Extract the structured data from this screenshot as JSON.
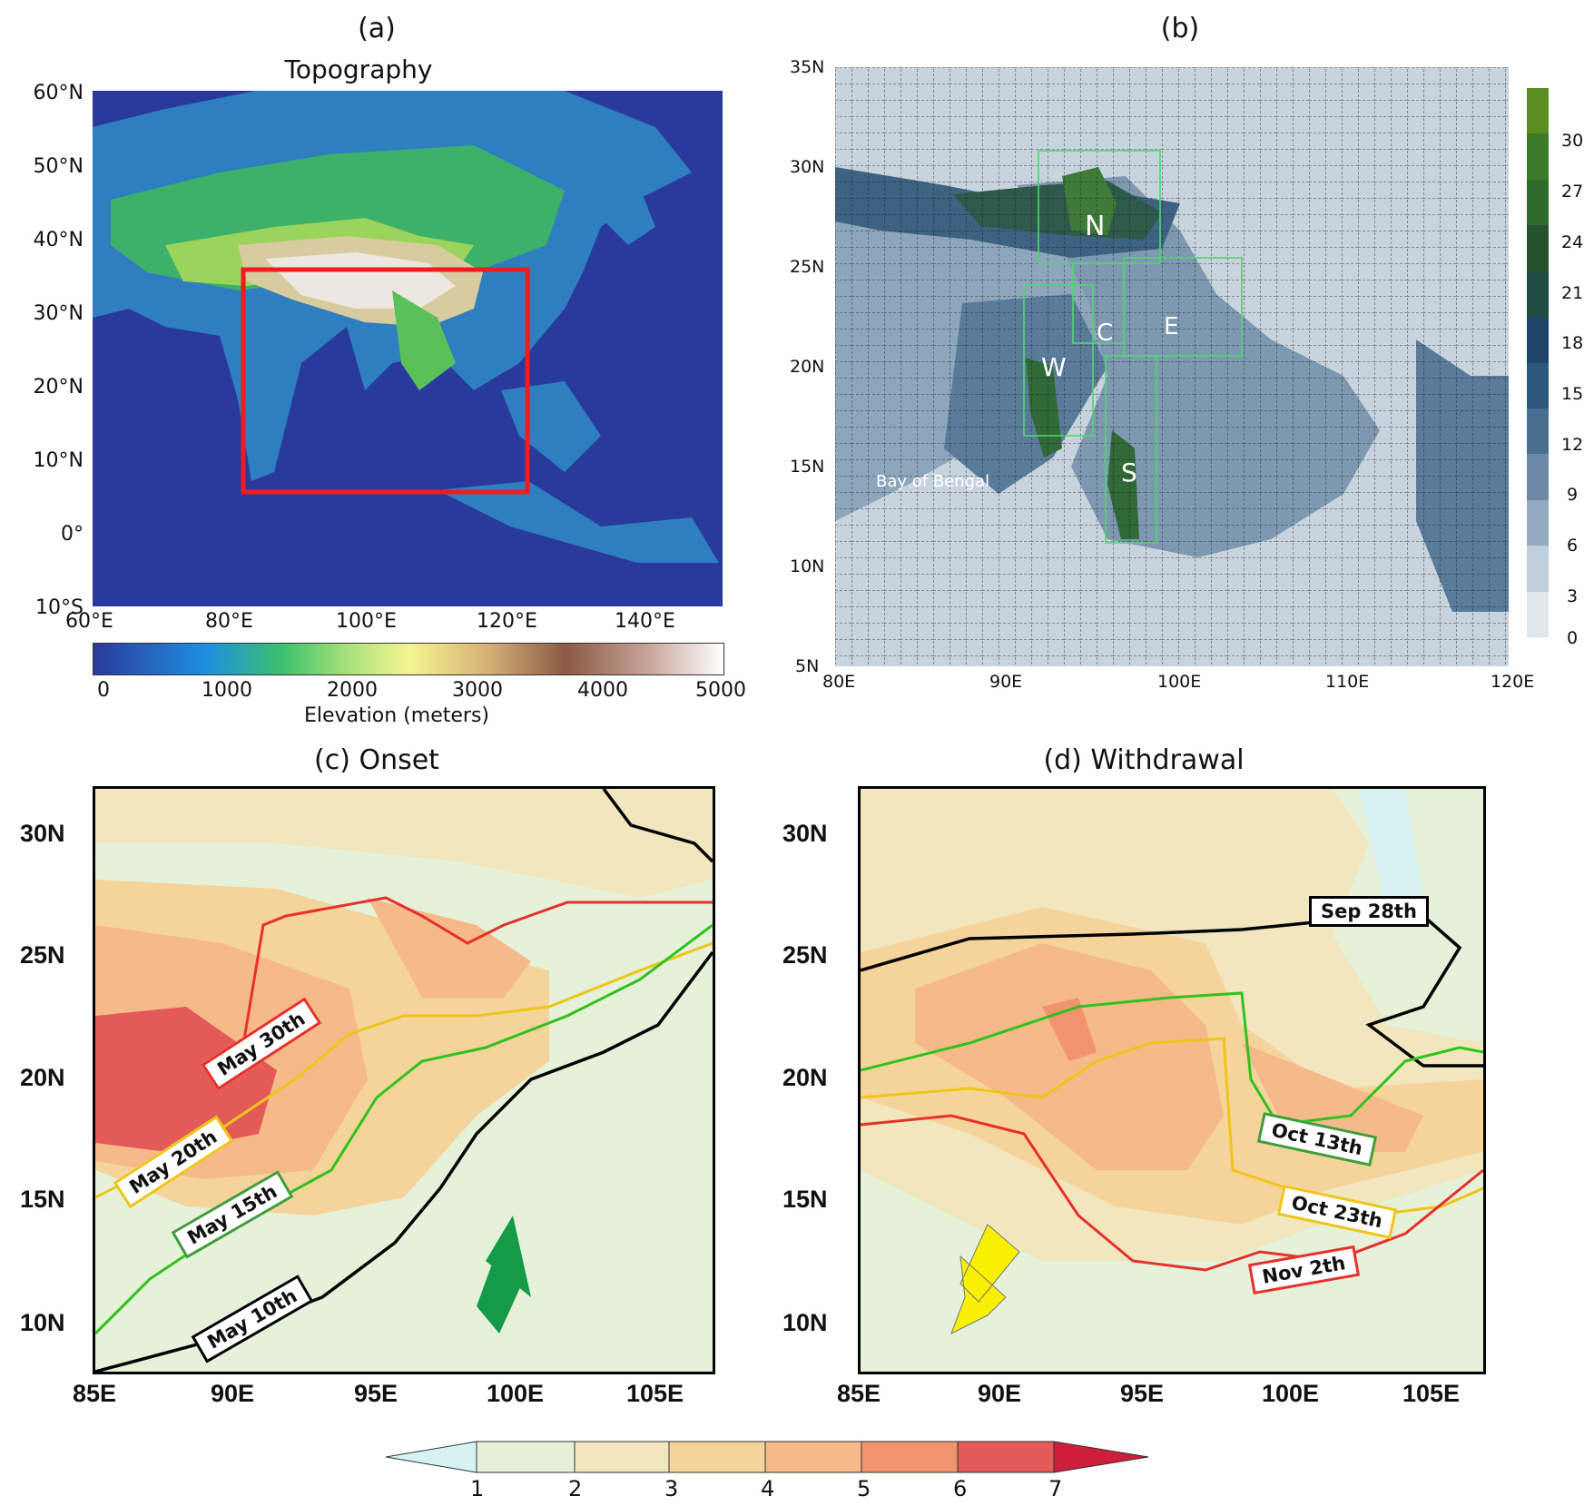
{
  "panel_a": {
    "label": "(a)",
    "title": "Topography",
    "lat_ticks": [
      "60°N",
      "50°N",
      "40°N",
      "30°N",
      "20°N",
      "10°N",
      "0°",
      "10°S"
    ],
    "lon_ticks": [
      "60°E",
      "80°E",
      "100°E",
      "120°E",
      "140°E"
    ],
    "colorbar_ticks": [
      "0",
      "1000",
      "2000",
      "3000",
      "4000",
      "5000"
    ],
    "colorbar_label": "Elevation (meters)"
  },
  "panel_b": {
    "label": "(b)",
    "lat_ticks": [
      "35N",
      "30N",
      "25N",
      "20N",
      "15N",
      "10N",
      "5N"
    ],
    "lon_ticks": [
      "80E",
      "90E",
      "100E",
      "110E",
      "120E"
    ],
    "colorbar_ticks": [
      "30",
      "27",
      "24",
      "21",
      "18",
      "15",
      "12",
      "9",
      "6",
      "3",
      "0"
    ],
    "regions": [
      "N",
      "C",
      "E",
      "W",
      "S"
    ],
    "place_label": "Bay of Bengal"
  },
  "panel_c": {
    "title": "(c) Onset",
    "lat_ticks": [
      "30N",
      "25N",
      "20N",
      "15N",
      "10N"
    ],
    "lon_ticks": [
      "85E",
      "90E",
      "95E",
      "100E",
      "105E"
    ],
    "isochrones": [
      {
        "name": "May 30th",
        "color": "#e8302a"
      },
      {
        "name": "May 20th",
        "color": "#f0c419"
      },
      {
        "name": "May 15th",
        "color": "#2fc21d"
      },
      {
        "name": "May 10th",
        "color": "#000000"
      }
    ],
    "arrow_color": "#159a48"
  },
  "panel_d": {
    "title": "(d) Withdrawal",
    "lat_ticks": [
      "30N",
      "25N",
      "20N",
      "15N",
      "10N"
    ],
    "lon_ticks": [
      "85E",
      "90E",
      "95E",
      "100E",
      "105E"
    ],
    "isochrones": [
      {
        "name": "Sep 28th",
        "color": "#000000"
      },
      {
        "name": "Oct 13th",
        "color": "#2fc21d"
      },
      {
        "name": "Oct 23th",
        "color": "#f0c419"
      },
      {
        "name": "Nov 2th",
        "color": "#e8302a"
      }
    ],
    "arrow_color": "#f8f000"
  },
  "bottom_colorbar": {
    "ticks": [
      "1",
      "2",
      "3",
      "4",
      "5",
      "6",
      "7"
    ],
    "colors": [
      "#e6f1da",
      "#f1e6bd",
      "#f5d49c",
      "#f6b98a",
      "#f1936f",
      "#e35a58",
      "#cf1e3c"
    ]
  }
}
